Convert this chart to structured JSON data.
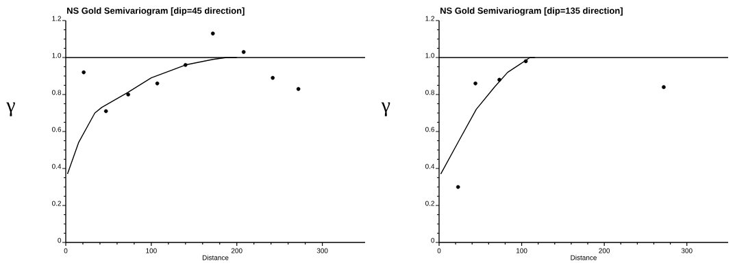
{
  "chart_data": [
    {
      "type": "scatter",
      "title": "NS Gold Semivariogram [dip=45 direction]",
      "xlabel": "Distance",
      "ylabel": "γ",
      "xlim": [
        0,
        350
      ],
      "xticks": [
        0,
        100,
        200,
        300
      ],
      "ylim": [
        0,
        1.2
      ],
      "yticks": [
        0,
        0.2,
        0.4,
        0.6,
        0.8,
        {
          "value": 1.0,
          "label": "1.0"
        },
        1.2
      ],
      "ref_lines": [
        {
          "axis": "y",
          "value": 1.0,
          "color": "#000000"
        }
      ],
      "series": [
        {
          "color": "#000000",
          "marker": "circle",
          "x": [
            21,
            47,
            73,
            107,
            140,
            172,
            208,
            242,
            272
          ],
          "values": [
            0.92,
            0.71,
            0.8,
            0.86,
            0.96,
            1.13,
            1.03,
            0.89,
            0.83
          ]
        },
        {
          "type": "line",
          "color": "#000000",
          "marker": "none",
          "x": [
            2,
            15,
            34,
            42,
            72,
            100,
            140,
            172,
            188,
            200
          ],
          "values": [
            0.37,
            0.54,
            0.7,
            0.73,
            0.81,
            0.89,
            0.96,
            0.99,
            1.0,
            1.0
          ]
        }
      ]
    },
    {
      "type": "scatter",
      "title": "NS Gold Semivariogram [dip=135 direction]",
      "xlabel": "Distance",
      "ylabel": "γ",
      "xlim": [
        0,
        350
      ],
      "xticks": [
        0,
        100,
        200,
        300
      ],
      "ylim": [
        0,
        1.2
      ],
      "yticks": [
        0,
        0.2,
        0.4,
        0.6,
        0.8,
        {
          "value": 1.0,
          "label": "1.0"
        },
        1.2
      ],
      "ref_lines": [
        {
          "axis": "y",
          "value": 1.0,
          "color": "#000000"
        }
      ],
      "series": [
        {
          "color": "#000000",
          "marker": "circle",
          "x": [
            23,
            44,
            73,
            105,
            272
          ],
          "values": [
            0.3,
            0.86,
            0.88,
            0.98,
            0.84
          ]
        },
        {
          "type": "line",
          "color": "#000000",
          "marker": "none",
          "x": [
            2,
            24,
            45,
            67,
            83,
            100,
            110,
            116
          ],
          "values": [
            0.37,
            0.55,
            0.72,
            0.84,
            0.92,
            0.97,
            1.0,
            1.0
          ]
        }
      ]
    }
  ]
}
